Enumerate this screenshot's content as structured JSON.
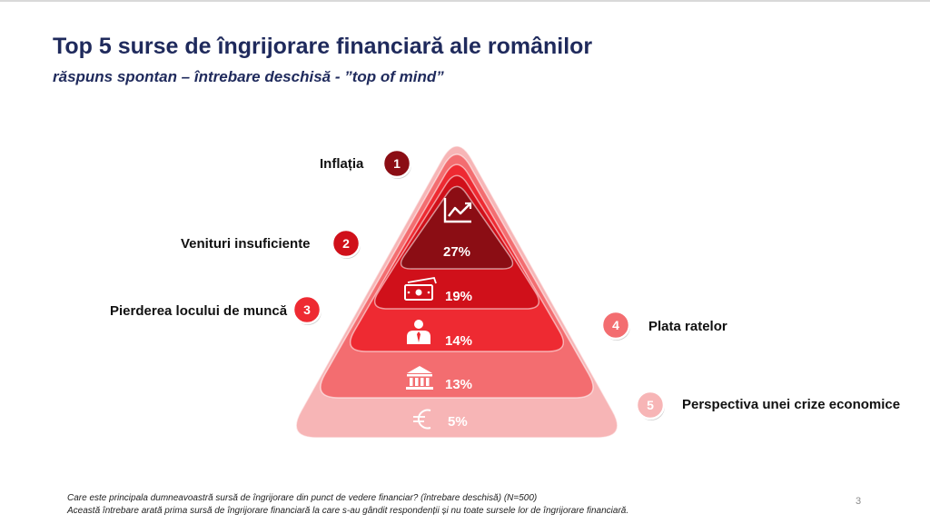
{
  "title": "Top 5 surse de îngrijorare financiară ale românilor",
  "subtitle": "răspuns spontan – întrebare deschisă - ”top of mind”",
  "chart_data": {
    "type": "pyramid",
    "title": "Top 5 surse de îngrijorare financiară ale românilor",
    "subtitle": "răspuns spontan – întrebare deschisă - ”top of mind”",
    "categories": [
      "Inflația",
      "Venituri insuficiente",
      "Pierderea locului de muncă",
      "Plata ratelor",
      "Perspectiva unei crize economice"
    ],
    "ranks": [
      1,
      2,
      3,
      4,
      5
    ],
    "values": [
      27,
      19,
      14,
      13,
      5
    ],
    "value_labels": [
      "27%",
      "19%",
      "14%",
      "13%",
      "5%"
    ],
    "units": "%",
    "icons": [
      "trend-chart-icon",
      "money-bill-icon",
      "person-tie-icon",
      "bank-icon",
      "euro-icon"
    ],
    "colors": [
      "#8b0d14",
      "#d0101a",
      "#ee2a32",
      "#f36d70",
      "#f7b5b6"
    ]
  },
  "footnotes": [
    "Care este principala dumneavoastră sursă de îngrijorare din punct de vedere financiar? (întrebare deschisă) (N=500)",
    "Această întrebare arată prima sursă de îngrijorare financiară la care s-au gândit respondenții și nu toate sursele lor de îngrijorare financiară."
  ],
  "page_number": "3"
}
